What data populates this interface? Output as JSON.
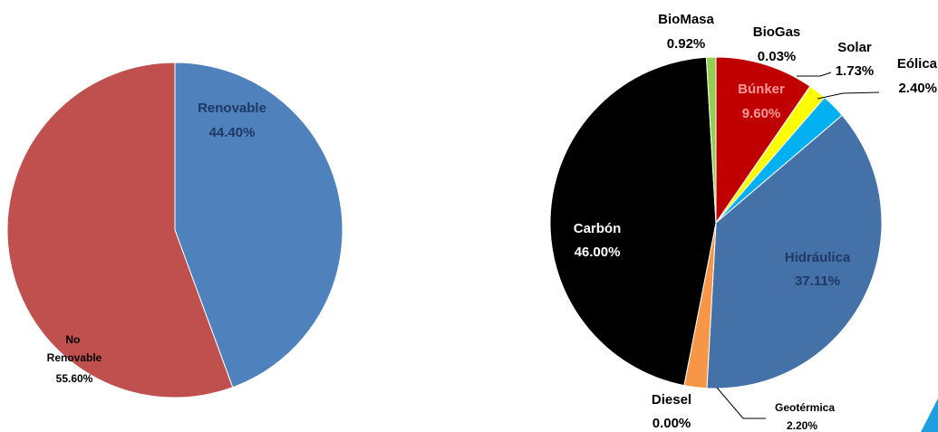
{
  "chart_data": [
    {
      "type": "pie",
      "title": "",
      "slices": [
        {
          "label": "Renovable",
          "value": 44.4,
          "display": "44.40%",
          "color": "#4f81bd"
        },
        {
          "label": "No Renovable",
          "value": 55.6,
          "display": "55.60%",
          "color": "#c0504d"
        }
      ]
    },
    {
      "type": "pie",
      "title": "",
      "slices": [
        {
          "label": "Búnker",
          "value": 9.6,
          "display": "9.60%",
          "color": "#c00000"
        },
        {
          "label": "BioGas",
          "value": 0.03,
          "display": "0.03%",
          "color": "#c00000"
        },
        {
          "label": "Solar",
          "value": 1.73,
          "display": "1.73%",
          "color": "#ffff00"
        },
        {
          "label": "Eólica",
          "value": 2.4,
          "display": "2.40%",
          "color": "#00b0f0"
        },
        {
          "label": "Hidráulica",
          "value": 37.11,
          "display": "37.11%",
          "color": "#4472a8"
        },
        {
          "label": "Geotérmica",
          "value": 2.2,
          "display": "2.20%",
          "color": "#f79646"
        },
        {
          "label": "Diesel",
          "value": 0.0,
          "display": "0.00%",
          "color": "#7f7f7f"
        },
        {
          "label": "Carbón",
          "value": 46.0,
          "display": "46.00%",
          "color": "#000000"
        },
        {
          "label": "BioMasa",
          "value": 0.92,
          "display": "0.92%",
          "color": "#92d050"
        }
      ]
    }
  ],
  "corner_mark_color": "#1ea0e0"
}
